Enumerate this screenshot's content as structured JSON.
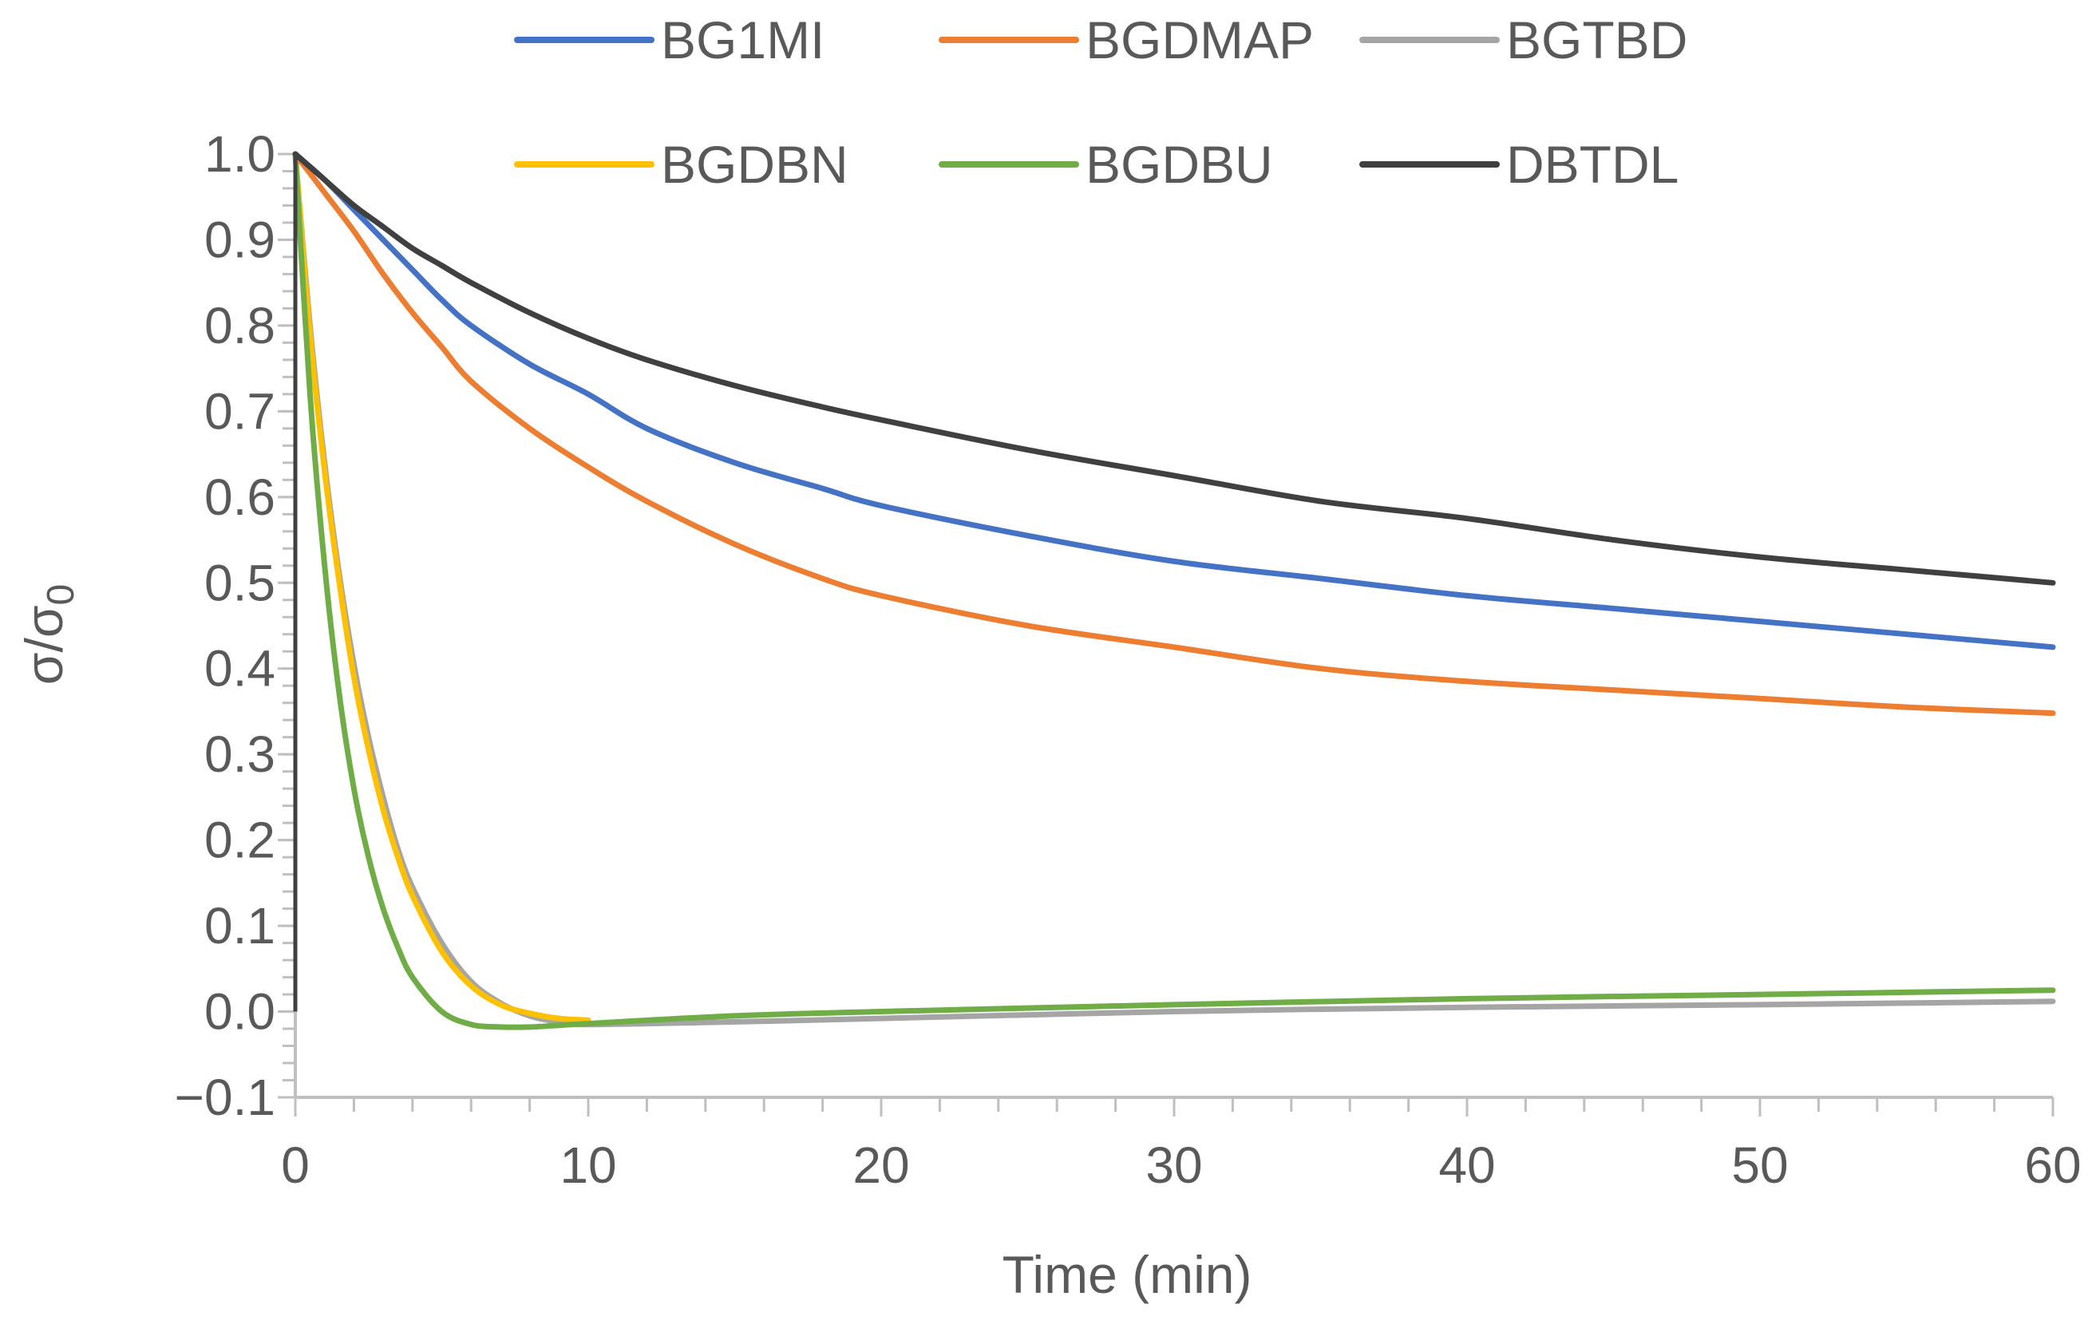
{
  "chart_data": {
    "type": "line",
    "title": "",
    "xlabel": "Time (min)",
    "ylabel_main": "σ/σ",
    "ylabel_sub": "0",
    "xlim": [
      0,
      60
    ],
    "ylim": [
      -0.1,
      1.0
    ],
    "x_major_ticks": [
      0,
      10,
      20,
      30,
      40,
      50,
      60
    ],
    "x_tick_labels": [
      "0",
      "10",
      "20",
      "30",
      "40",
      "50",
      "60"
    ],
    "x_minor_step": 2,
    "y_major_ticks": [
      -0.1,
      0.0,
      0.1,
      0.2,
      0.3,
      0.4,
      0.5,
      0.6,
      0.7,
      0.8,
      0.9,
      1.0
    ],
    "y_tick_labels": [
      "−0.1",
      "0.0",
      "0.1",
      "0.2",
      "0.3",
      "0.4",
      "0.5",
      "0.6",
      "0.7",
      "0.8",
      "0.9",
      "1.0"
    ],
    "y_minor_step": 0.02,
    "grid": false,
    "legend_position": "top",
    "series": [
      {
        "name": "BG1MI",
        "color": "#4472C4",
        "x": [
          0,
          1,
          2,
          3,
          4,
          5,
          6,
          8,
          10,
          12,
          15,
          18,
          20,
          25,
          30,
          35,
          40,
          45,
          50,
          55,
          60
        ],
        "y": [
          1.0,
          0.97,
          0.935,
          0.9,
          0.865,
          0.83,
          0.8,
          0.755,
          0.72,
          0.68,
          0.64,
          0.61,
          0.59,
          0.555,
          0.525,
          0.505,
          0.485,
          0.47,
          0.455,
          0.44,
          0.425
        ]
      },
      {
        "name": "BGDMAP",
        "color": "#ED7D31",
        "x": [
          0,
          1,
          2,
          3,
          4,
          5,
          6,
          8,
          10,
          12,
          15,
          18,
          20,
          25,
          30,
          35,
          40,
          45,
          50,
          55,
          60
        ],
        "y": [
          1.0,
          0.955,
          0.91,
          0.86,
          0.815,
          0.775,
          0.735,
          0.68,
          0.635,
          0.595,
          0.545,
          0.505,
          0.485,
          0.45,
          0.425,
          0.4,
          0.385,
          0.375,
          0.365,
          0.355,
          0.348
        ]
      },
      {
        "name": "BGTBD",
        "color": "#A5A5A5",
        "x": [
          0,
          0.5,
          1,
          1.5,
          2,
          2.5,
          3,
          3.5,
          4,
          5,
          6,
          7,
          8,
          9,
          10,
          15,
          20,
          30,
          40,
          50,
          60
        ],
        "y": [
          1.0,
          0.8,
          0.64,
          0.51,
          0.405,
          0.32,
          0.25,
          0.19,
          0.145,
          0.08,
          0.035,
          0.01,
          -0.005,
          -0.012,
          -0.015,
          -0.012,
          -0.008,
          0.0,
          0.005,
          0.008,
          0.012
        ]
      },
      {
        "name": "BGDBN",
        "color": "#FFC000",
        "x": [
          0,
          0.5,
          1,
          1.5,
          2,
          2.5,
          3,
          3.5,
          4,
          5,
          6,
          7,
          8,
          9,
          10
        ],
        "y": [
          1.0,
          0.79,
          0.63,
          0.5,
          0.39,
          0.305,
          0.235,
          0.18,
          0.135,
          0.07,
          0.03,
          0.008,
          -0.002,
          -0.008,
          -0.01
        ]
      },
      {
        "name": "BGDBU",
        "color": "#70AD47",
        "x": [
          0,
          0.5,
          1,
          1.5,
          2,
          2.5,
          3,
          3.5,
          4,
          5,
          6,
          7,
          8,
          9,
          10,
          15,
          20,
          30,
          40,
          50,
          60
        ],
        "y": [
          1.0,
          0.72,
          0.52,
          0.37,
          0.26,
          0.18,
          0.12,
          0.075,
          0.04,
          0.0,
          -0.015,
          -0.018,
          -0.018,
          -0.016,
          -0.014,
          -0.005,
          0.0,
          0.008,
          0.015,
          0.02,
          0.025
        ]
      },
      {
        "name": "DBTDL",
        "color": "#404040",
        "x": [
          0,
          1,
          2,
          3,
          4,
          5,
          6,
          8,
          10,
          12,
          15,
          18,
          20,
          25,
          30,
          35,
          40,
          45,
          50,
          55,
          60
        ],
        "y": [
          1.0,
          0.97,
          0.94,
          0.915,
          0.89,
          0.87,
          0.85,
          0.815,
          0.785,
          0.76,
          0.73,
          0.705,
          0.69,
          0.655,
          0.625,
          0.595,
          0.575,
          0.55,
          0.53,
          0.515,
          0.5
        ]
      }
    ]
  }
}
